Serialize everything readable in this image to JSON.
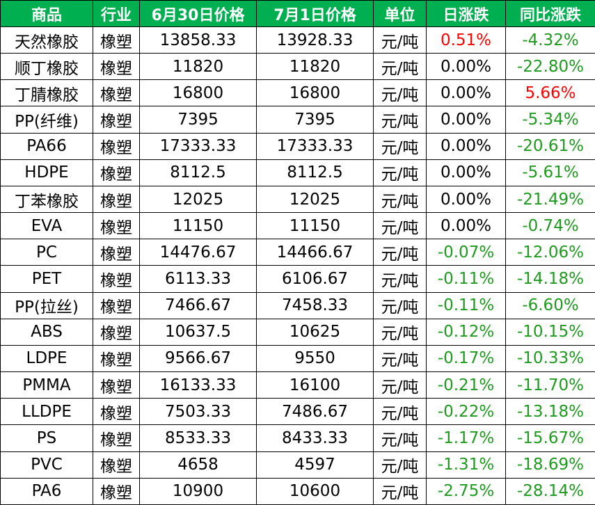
{
  "table": {
    "header": [
      "商品",
      "行业",
      "6月30日价格",
      "7月1日价格",
      "单位",
      "日涨跌",
      "同比涨跌"
    ],
    "rows": [
      [
        "天然橡胶",
        "橡塑",
        "13858.33",
        "13928.33",
        "元/吨",
        "0.51%",
        "-4.32%"
      ],
      [
        "顺丁橡胶",
        "橡塑",
        "11820",
        "11820",
        "元/吨",
        "0.00%",
        "-22.80%"
      ],
      [
        "丁腈橡胶",
        "橡塑",
        "16800",
        "16800",
        "元/吨",
        "0.00%",
        "5.66%"
      ],
      [
        "PP(纤维)",
        "橡塑",
        "7395",
        "7395",
        "元/吨",
        "0.00%",
        "-5.34%"
      ],
      [
        "PA66",
        "橡塑",
        "17333.33",
        "17333.33",
        "元/吨",
        "0.00%",
        "-20.61%"
      ],
      [
        "HDPE",
        "橡塑",
        "8112.5",
        "8112.5",
        "元/吨",
        "0.00%",
        "-5.61%"
      ],
      [
        "丁苯橡胶",
        "橡塑",
        "12025",
        "12025",
        "元/吨",
        "0.00%",
        "-21.49%"
      ],
      [
        "EVA",
        "橡塑",
        "11150",
        "11150",
        "元/吨",
        "0.00%",
        "-0.74%"
      ],
      [
        "PC",
        "橡塑",
        "14476.67",
        "14466.67",
        "元/吨",
        "-0.07%",
        "-12.06%"
      ],
      [
        "PET",
        "橡塑",
        "6113.33",
        "6106.67",
        "元/吨",
        "-0.11%",
        "-14.18%"
      ],
      [
        "PP(拉丝)",
        "橡塑",
        "7466.67",
        "7458.33",
        "元/吨",
        "-0.11%",
        "-6.60%"
      ],
      [
        "ABS",
        "橡塑",
        "10637.5",
        "10625",
        "元/吨",
        "-0.12%",
        "-10.15%"
      ],
      [
        "LDPE",
        "橡塑",
        "9566.67",
        "9550",
        "元/吨",
        "-0.17%",
        "-10.33%"
      ],
      [
        "PMMA",
        "橡塑",
        "16133.33",
        "16100",
        "元/吨",
        "-0.21%",
        "-11.70%"
      ],
      [
        "LLDPE",
        "橡塑",
        "7503.33",
        "7486.67",
        "元/吨",
        "-0.22%",
        "-13.18%"
      ],
      [
        "PS",
        "橡塑",
        "8533.33",
        "8433.33",
        "元/吨",
        "-1.17%",
        "-15.67%"
      ],
      [
        "PVC",
        "橡塑",
        "4658",
        "4597",
        "元/吨",
        "-1.31%",
        "-18.69%"
      ],
      [
        "PA6",
        "橡塑",
        "10900",
        "10600",
        "元/吨",
        "-2.75%",
        "-28.14%"
      ]
    ]
  }
}
